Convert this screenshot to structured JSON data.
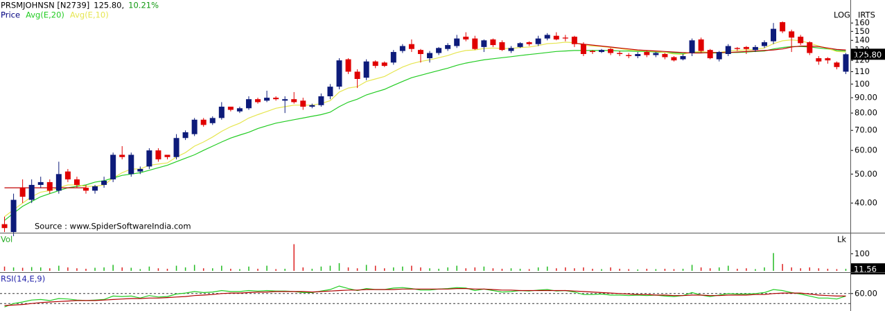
{
  "chart_data": [
    {
      "type": "candlestick",
      "title": "PRSMJOHNSN [N2739]",
      "header_values": [
        "125.80,",
        "10.21%"
      ],
      "header_colors": [
        "#000000",
        "#119911"
      ],
      "scale_label": "LOG",
      "corner_label": "IRTS",
      "annotation": "Source : www.SpiderSoftwareIndia.com",
      "log_scale": true,
      "ylim": [
        32,
        191
      ],
      "yticks": [
        {
          "value": 40,
          "label": "40.00"
        },
        {
          "value": 50,
          "label": "50.00"
        },
        {
          "value": 60,
          "label": "60.00"
        },
        {
          "value": 70,
          "label": "70.00"
        },
        {
          "value": 80,
          "label": "80.00"
        },
        {
          "value": 90,
          "label": "90.00"
        },
        100,
        110,
        120,
        130,
        140,
        150,
        160
      ],
      "series": [
        {
          "name": "Price",
          "color": "#000080",
          "up_color": "#0d1b7a",
          "down_color": "#e00000",
          "last_label": "125.80",
          "open": [
            34,
            32,
            45,
            41,
            46,
            47,
            44,
            51,
            48,
            45,
            44,
            46,
            48,
            58,
            50,
            51,
            53,
            60,
            58,
            57,
            66,
            68,
            76,
            74,
            77,
            84,
            81,
            83,
            89,
            88,
            90,
            88,
            89,
            88,
            84,
            85,
            91,
            98,
            121,
            110,
            105,
            119,
            118,
            118,
            129,
            136,
            130,
            122,
            127,
            131,
            134,
            144,
            142,
            133,
            141,
            138,
            129,
            133,
            138,
            136,
            142,
            145,
            143,
            144,
            136,
            129,
            128,
            131,
            127,
            125,
            124,
            128,
            125,
            126,
            123,
            121,
            127,
            141,
            130,
            121,
            126,
            132,
            133,
            130,
            134,
            139,
            161,
            150,
            144,
            138,
            122,
            122,
            118,
            110
          ],
          "high": [
            36,
            43,
            48,
            48,
            49,
            48,
            55,
            52,
            49,
            46,
            46,
            49,
            59,
            62,
            59,
            53,
            61,
            61,
            58,
            68,
            70,
            77,
            77,
            78,
            87,
            84,
            84,
            91,
            90,
            95,
            91,
            91,
            94,
            90,
            86,
            93,
            100,
            122,
            122,
            112,
            121,
            120,
            119,
            130,
            136,
            141,
            131,
            129,
            133,
            137,
            146,
            149,
            145,
            141,
            142,
            140,
            134,
            138,
            139,
            145,
            148,
            149,
            146,
            145,
            138,
            130,
            131,
            132,
            129,
            127,
            128,
            129,
            128,
            127,
            124,
            126,
            142,
            143,
            131,
            129,
            136,
            133,
            134,
            135,
            140,
            160,
            162,
            152,
            146,
            139,
            124,
            123,
            119,
            127
          ],
          "low": [
            32,
            31,
            40,
            40,
            45,
            43,
            43,
            47,
            45,
            43,
            43,
            45,
            47,
            56,
            49,
            50,
            52,
            55,
            56,
            56,
            65,
            67,
            72,
            73,
            76,
            81,
            80,
            82,
            86,
            87,
            88,
            80,
            86,
            82,
            83,
            84,
            89,
            96,
            108,
            97,
            103,
            113,
            114,
            116,
            127,
            128,
            118,
            118,
            125,
            129,
            132,
            139,
            130,
            128,
            133,
            129,
            127,
            132,
            134,
            134,
            140,
            140,
            139,
            133,
            124,
            126,
            127,
            125,
            124,
            122,
            122,
            123,
            123,
            121,
            119,
            120,
            124,
            127,
            121,
            119,
            124,
            129,
            126,
            128,
            132,
            136,
            148,
            128,
            135,
            125,
            116,
            117,
            112,
            108
          ],
          "close": [
            33,
            41,
            42,
            46,
            47,
            44,
            50,
            48,
            46,
            44,
            45.5,
            47.5,
            58,
            57,
            58,
            52,
            60,
            56,
            57,
            66,
            69,
            76,
            73,
            77,
            84,
            82,
            83,
            89,
            87,
            90,
            89,
            89,
            87,
            84,
            85,
            91,
            98,
            120,
            110,
            104,
            119,
            115,
            115,
            128,
            134,
            131,
            126,
            127,
            132,
            135,
            142,
            141,
            131,
            140,
            135,
            130,
            132,
            137,
            136,
            142,
            146,
            141,
            142,
            136,
            126,
            128,
            130,
            127,
            126,
            124,
            126,
            125,
            127,
            123,
            120,
            124,
            140,
            129,
            122,
            128,
            134,
            131,
            131,
            133,
            138,
            153,
            150,
            143,
            137,
            127,
            119,
            120,
            114,
            125.8
          ]
        },
        {
          "name": "Avg(E,20)",
          "color": "#22cc22",
          "values": [
            35,
            37,
            39,
            40.5,
            42,
            43,
            44,
            45,
            45.5,
            46,
            47,
            47.5,
            48.5,
            49.5,
            50,
            50.5,
            51.5,
            52.5,
            53.5,
            55,
            56.5,
            58,
            60,
            62,
            64,
            66,
            67.5,
            69,
            71,
            72.5,
            74,
            75,
            76,
            77,
            78,
            79,
            80.5,
            84,
            87,
            89,
            92,
            94,
            96,
            99,
            102,
            105,
            107,
            109,
            111,
            113,
            115.5,
            117.5,
            119,
            120.5,
            121.5,
            122.5,
            123.5,
            124.5,
            125.5,
            126.5,
            127.5,
            128.5,
            129,
            129.5,
            129.5,
            129.5,
            129.5,
            129.5,
            129,
            129,
            128.5,
            128.5,
            128,
            127.5,
            127,
            126.5,
            127.5,
            127.5,
            127,
            127,
            127.5,
            127.5,
            128,
            128.5,
            129,
            131,
            132.5,
            133.5,
            133.5,
            133,
            132,
            131,
            129.5,
            129
          ]
        },
        {
          "name": "Avg(E,10)",
          "color": "#e6e650",
          "values": [
            36,
            38,
            40,
            42,
            43.5,
            44,
            45,
            46,
            46,
            45.5,
            45.5,
            46,
            48.5,
            50.5,
            52,
            52,
            53.5,
            54,
            54.5,
            57,
            59,
            62,
            64,
            66.5,
            69.5,
            72,
            74,
            77,
            79,
            81,
            83,
            84,
            85,
            85,
            85,
            86,
            88,
            94,
            97,
            98,
            102,
            104,
            106,
            110,
            114,
            117,
            119,
            120.5,
            122.5,
            124.5,
            127.5,
            129.5,
            130,
            131.5,
            132,
            131.5,
            131.5,
            132.5,
            133,
            134.5,
            136.5,
            137,
            138,
            137.5,
            135,
            134,
            133.5,
            132.5,
            131.5,
            130,
            129.5,
            129,
            128.5,
            127.5,
            126,
            125.5,
            128,
            128.5,
            127.5,
            127.5,
            129,
            129.5,
            130,
            130.5,
            132,
            136.5,
            139.5,
            140.5,
            139.5,
            137,
            134,
            131.5,
            128.5,
            128
          ]
        },
        {
          "color": "#c00000",
          "values": [
            45,
            45,
            45,
            45,
            45,
            45,
            45,
            45,
            45,
            45,
            null,
            null,
            null,
            null,
            null,
            null,
            null,
            null,
            null,
            null,
            null,
            null,
            null,
            null,
            null,
            null,
            null,
            null,
            null,
            null,
            null,
            null,
            null,
            null,
            null,
            null,
            null,
            null,
            null,
            null,
            null,
            null,
            null,
            null,
            null,
            null,
            null,
            null,
            null,
            null,
            null,
            null,
            null,
            null,
            null,
            null,
            null,
            null,
            null,
            null,
            null,
            null,
            null,
            137,
            136,
            135,
            134,
            133,
            132,
            131,
            130,
            129.5,
            129,
            128.5,
            128,
            127.5,
            127,
            127,
            127.5,
            127.5,
            127.5,
            128,
            128.5,
            129,
            129.5,
            130,
            131,
            133,
            134,
            134,
            133.5,
            132,
            130.5,
            130
          ]
        }
      ]
    },
    {
      "type": "bar",
      "title": "Vol",
      "unit_label": "Lk",
      "ylim": [
        0,
        215
      ],
      "yticks": [
        100
      ],
      "up_color": "#22bb22",
      "down_color": "#dd2222",
      "last_label": "11.56",
      "values": [
        25,
        20,
        18,
        22,
        20,
        15,
        30,
        20,
        15,
        12,
        18,
        20,
        35,
        20,
        18,
        10,
        25,
        15,
        12,
        30,
        20,
        35,
        15,
        15,
        30,
        12,
        10,
        25,
        12,
        30,
        10,
        12,
        156,
        20,
        12,
        25,
        30,
        45,
        20,
        15,
        35,
        30,
        15,
        20,
        25,
        30,
        20,
        15,
        12,
        20,
        30,
        15,
        20,
        25,
        15,
        12,
        15,
        12,
        10,
        20,
        25,
        15,
        20,
        15,
        20,
        12,
        10,
        20,
        12,
        10,
        8,
        12,
        10,
        12,
        10,
        12,
        35,
        20,
        15,
        20,
        30,
        12,
        15,
        10,
        20,
        104,
        40,
        20,
        15,
        20,
        15,
        12,
        10,
        11.56
      ]
    },
    {
      "type": "line",
      "title": "RSI(14,E,9)",
      "ylim": [
        25,
        100
      ],
      "yticks": [
        {
          "value": 60,
          "label": "60.00"
        }
      ],
      "reference_lines": [
        60,
        40
      ],
      "series": [
        {
          "color": "#22cc22",
          "values": [
            33,
            40,
            43,
            47,
            48,
            46,
            50,
            49,
            47,
            46,
            47,
            48,
            55,
            54,
            55,
            51,
            56,
            53,
            54,
            59,
            61,
            64,
            62,
            63,
            66,
            64,
            64,
            66,
            65,
            66,
            65,
            65,
            64,
            62,
            62,
            65,
            68,
            75,
            70,
            66,
            70,
            68,
            68,
            71,
            72,
            70,
            67,
            67,
            69,
            70,
            72,
            71,
            66,
            69,
            66,
            63,
            64,
            66,
            65,
            67,
            68,
            65,
            66,
            63,
            58,
            58,
            59,
            57,
            57,
            56,
            57,
            56,
            57,
            55,
            54,
            56,
            62,
            57,
            54,
            57,
            60,
            59,
            59,
            60,
            62,
            68,
            66,
            62,
            59,
            55,
            51,
            51,
            49,
            55
          ]
        },
        {
          "color": "#b00000",
          "values": [
            36,
            37,
            38,
            40,
            42,
            43,
            44,
            45,
            46,
            46,
            46,
            47,
            48,
            49,
            50,
            50,
            51,
            51,
            52,
            53,
            54,
            56,
            57,
            58,
            60,
            61,
            61,
            62,
            63,
            63,
            64,
            64,
            64,
            64,
            63,
            64,
            65,
            66,
            67,
            67,
            68,
            68,
            68,
            68,
            69,
            69,
            69,
            69,
            69,
            69,
            70,
            70,
            69,
            69,
            68,
            67,
            67,
            66,
            66,
            66,
            66,
            66,
            66,
            65,
            64,
            63,
            62,
            61,
            60,
            59,
            58,
            58,
            57,
            57,
            56,
            56,
            57,
            57,
            56,
            56,
            57,
            57,
            57,
            58,
            58,
            60,
            61,
            61,
            61,
            59,
            57,
            56,
            55,
            55
          ]
        }
      ]
    }
  ]
}
